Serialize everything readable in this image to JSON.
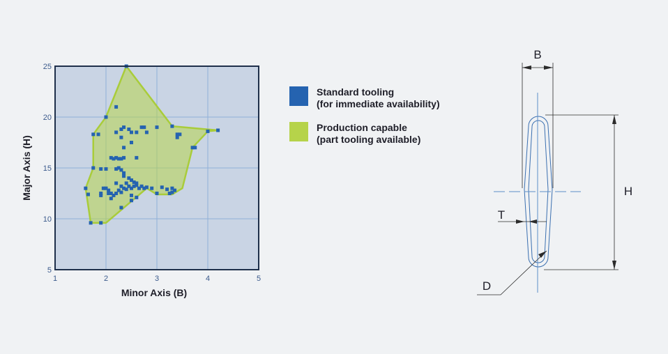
{
  "colors": {
    "standard": "#2563b0",
    "production_fill": "#b6d34a",
    "production_stroke": "#a9cc3a",
    "plot_bg": "#c9d4e4",
    "axis": "#1e2f4a",
    "grid": "#8fb0d8"
  },
  "legend": {
    "standard_line1": "Standard tooling",
    "standard_line2": "(for immediate availability)",
    "production_line1": "Production capable",
    "production_line2": "(part tooling available)"
  },
  "chart_data": {
    "type": "scatter",
    "xlabel": "Minor Axis (B)",
    "ylabel": "Major Axis (H)",
    "xlim": [
      1,
      5
    ],
    "ylim": [
      5,
      25
    ],
    "xticks": [
      "1",
      "2",
      "3",
      "4",
      "5"
    ],
    "yticks": [
      "5",
      "10",
      "15",
      "20",
      "25"
    ],
    "grid": true,
    "series": [
      {
        "name": "Production capable",
        "kind": "region",
        "points": [
          [
            2.4,
            25
          ],
          [
            3.3,
            19.1
          ],
          [
            4.2,
            18.7
          ],
          [
            4.0,
            18.6
          ],
          [
            3.7,
            17.0
          ],
          [
            3.5,
            13.0
          ],
          [
            3.3,
            12.4
          ],
          [
            3.0,
            12.4
          ],
          [
            2.8,
            13.0
          ],
          [
            2.0,
            9.6
          ],
          [
            1.7,
            9.6
          ],
          [
            1.6,
            13.0
          ],
          [
            1.75,
            15.0
          ],
          [
            1.75,
            18.3
          ],
          [
            2.0,
            20.0
          ],
          [
            2.4,
            25
          ]
        ]
      },
      {
        "name": "Standard tooling",
        "kind": "points",
        "points": [
          [
            2.4,
            25
          ],
          [
            2.0,
            20
          ],
          [
            2.2,
            21
          ],
          [
            1.75,
            18.3
          ],
          [
            1.85,
            18.3
          ],
          [
            2.2,
            18.5
          ],
          [
            2.3,
            18.8
          ],
          [
            2.35,
            19.0
          ],
          [
            2.45,
            18.8
          ],
          [
            2.5,
            18.5
          ],
          [
            2.6,
            18.5
          ],
          [
            2.7,
            19.0
          ],
          [
            2.75,
            19.0
          ],
          [
            2.8,
            18.5
          ],
          [
            3.0,
            19.0
          ],
          [
            3.3,
            19.1
          ],
          [
            3.4,
            18.3
          ],
          [
            3.45,
            18.3
          ],
          [
            3.4,
            18.0
          ],
          [
            3.7,
            17.0
          ],
          [
            3.75,
            17.0
          ],
          [
            4.0,
            18.6
          ],
          [
            4.2,
            18.7
          ],
          [
            2.3,
            18.0
          ],
          [
            2.5,
            17.5
          ],
          [
            2.35,
            17.0
          ],
          [
            2.1,
            16.0
          ],
          [
            2.15,
            15.9
          ],
          [
            2.2,
            16.0
          ],
          [
            2.25,
            15.9
          ],
          [
            2.3,
            15.9
          ],
          [
            2.35,
            16.0
          ],
          [
            2.6,
            16.0
          ],
          [
            1.75,
            15.0
          ],
          [
            1.9,
            14.9
          ],
          [
            2.0,
            14.9
          ],
          [
            2.2,
            14.9
          ],
          [
            2.25,
            15.0
          ],
          [
            2.3,
            14.8
          ],
          [
            2.35,
            14.5
          ],
          [
            2.35,
            14.2
          ],
          [
            2.45,
            14.0
          ],
          [
            2.5,
            13.8
          ],
          [
            2.55,
            13.6
          ],
          [
            2.6,
            13.5
          ],
          [
            2.4,
            13.5
          ],
          [
            2.45,
            13.2
          ],
          [
            2.5,
            13.0
          ],
          [
            2.55,
            13.2
          ],
          [
            2.6,
            13.3
          ],
          [
            2.65,
            13.0
          ],
          [
            2.7,
            13.2
          ],
          [
            2.75,
            13.0
          ],
          [
            2.8,
            13.1
          ],
          [
            2.9,
            13.0
          ],
          [
            2.2,
            13.5
          ],
          [
            2.3,
            13.2
          ],
          [
            2.35,
            13.0
          ],
          [
            2.4,
            12.9
          ],
          [
            2.2,
            12.5
          ],
          [
            2.25,
            12.8
          ],
          [
            2.3,
            12.6
          ],
          [
            2.1,
            12.5
          ],
          [
            2.15,
            12.3
          ],
          [
            2.0,
            13.0
          ],
          [
            2.05,
            12.8
          ],
          [
            1.95,
            13.0
          ],
          [
            1.9,
            12.5
          ],
          [
            1.9,
            12.3
          ],
          [
            2.05,
            12.5
          ],
          [
            2.1,
            12.0
          ],
          [
            2.5,
            12.3
          ],
          [
            2.6,
            12.1
          ],
          [
            2.5,
            11.8
          ],
          [
            2.3,
            11.1
          ],
          [
            1.6,
            13.0
          ],
          [
            1.65,
            12.4
          ],
          [
            1.7,
            9.6
          ],
          [
            1.9,
            9.6
          ],
          [
            3.0,
            12.5
          ],
          [
            3.1,
            13.1
          ],
          [
            3.2,
            12.9
          ],
          [
            3.25,
            12.5
          ],
          [
            3.3,
            12.6
          ],
          [
            3.35,
            12.8
          ],
          [
            3.3,
            13.0
          ]
        ]
      }
    ]
  },
  "drawing": {
    "label_b": "B",
    "label_h": "H",
    "label_t": "T",
    "label_d": "D"
  }
}
